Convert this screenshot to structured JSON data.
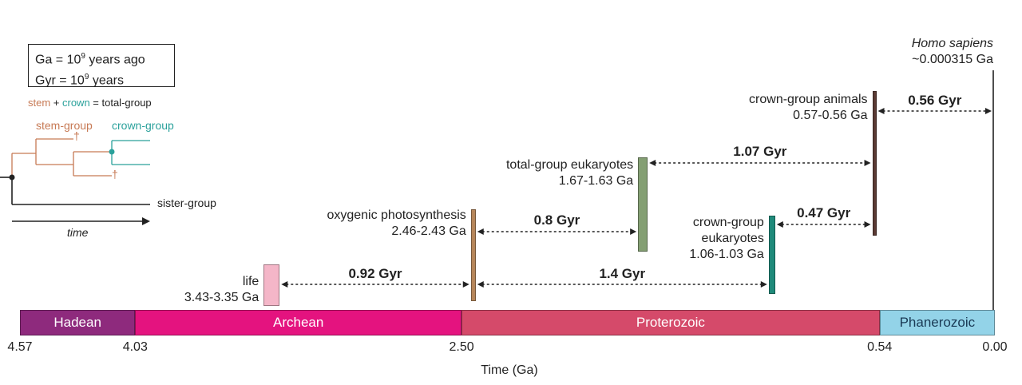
{
  "legend": {
    "ga_line": {
      "prefix": "Ga  = 10",
      "exp": "9",
      "suffix": " years ago"
    },
    "gyr_line": {
      "prefix": "Gyr = 10",
      "exp": "9",
      "suffix": " years"
    },
    "equation": {
      "stem": "stem",
      "plus": " + ",
      "crown": "crown",
      "equals": " = total-group"
    },
    "stem_group": "stem-group",
    "crown_group": "crown-group",
    "dagger": "†",
    "sister_group": "sister-group",
    "time": "time",
    "colors": {
      "stem": "#c77a55",
      "crown": "#2aa19b",
      "base": "#222222"
    }
  },
  "axis": {
    "title": "Time (Ga)",
    "domain": [
      4.57,
      0.0
    ],
    "ticks": [
      {
        "value": 4.57,
        "label": "4.57"
      },
      {
        "value": 4.03,
        "label": "4.03"
      },
      {
        "value": 2.5,
        "label": "2.50"
      },
      {
        "value": 0.54,
        "label": "0.54"
      },
      {
        "value": 0.0,
        "label": "0.00"
      }
    ]
  },
  "eons": [
    {
      "name": "Hadean",
      "start": 4.57,
      "end": 4.03,
      "color": "#8e2a7d",
      "text_color": "#ffffff"
    },
    {
      "name": "Archean",
      "start": 4.03,
      "end": 2.5,
      "color": "#e4137f",
      "text_color": "#ffffff"
    },
    {
      "name": "Proterozoic",
      "start": 2.5,
      "end": 0.54,
      "color": "#d54a6a",
      "text_color": "#ffffff"
    },
    {
      "name": "Phanerozoic",
      "start": 0.54,
      "end": 0.0,
      "color": "#93d3e8",
      "text_color": "#1a3a55"
    }
  ],
  "events": [
    {
      "id": "life",
      "label_lines": [
        "life",
        "3.43-3.35 Ga"
      ],
      "start": 3.43,
      "end": 3.35,
      "color": "#f4b6c8"
    },
    {
      "id": "oxygenic",
      "label_lines": [
        "oxygenic photosynthesis",
        "2.46-2.43 Ga"
      ],
      "start": 2.46,
      "end": 2.43,
      "color": "#b6865a"
    },
    {
      "id": "total-eukaryotes",
      "label_lines": [
        "total-group eukaryotes",
        "1.67-1.63 Ga"
      ],
      "start": 1.67,
      "end": 1.63,
      "color": "#849f73"
    },
    {
      "id": "crown-eukaryotes",
      "label_lines": [
        "crown-group",
        "eukaryotes",
        "1.06-1.03 Ga"
      ],
      "start": 1.06,
      "end": 1.03,
      "color": "#1f8a7a"
    },
    {
      "id": "crown-animals",
      "label_lines": [
        "crown-group animals",
        "0.57-0.56 Ga"
      ],
      "start": 0.57,
      "end": 0.56,
      "color": "#5a3a34"
    }
  ],
  "homo_sapiens": {
    "name": "Homo sapiens",
    "date": "~0.000315 Ga"
  },
  "intervals": [
    {
      "label": "0.92 Gyr"
    },
    {
      "label": "1.4 Gyr"
    },
    {
      "label": "0.8 Gyr"
    },
    {
      "label": "1.07 Gyr"
    },
    {
      "label": "0.47 Gyr"
    },
    {
      "label": "0.56 Gyr"
    }
  ]
}
